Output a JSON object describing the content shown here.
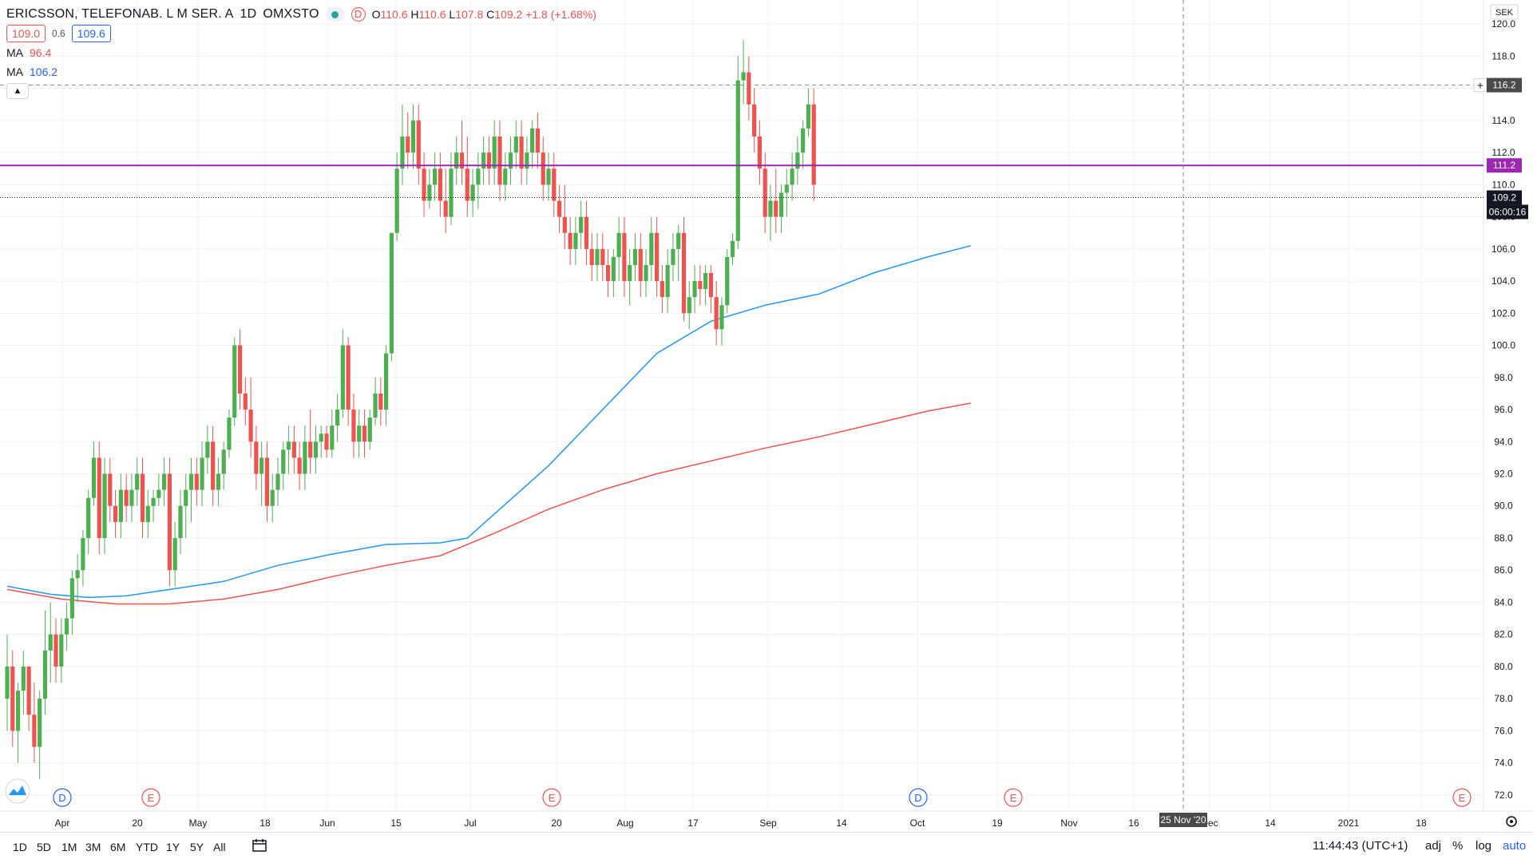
{
  "symbol_header": {
    "name": "ERICSSON, TELEFONAB. L M SER. A",
    "interval": "1D",
    "exchange": "OMXSTO",
    "badge": "D",
    "ohlc": {
      "o_label": "O",
      "o": "110.6",
      "h_label": "H",
      "h": "110.6",
      "l_label": "L",
      "l": "107.8",
      "c_label": "C",
      "c": "109.2",
      "change": "+1.8 (+1.68%)"
    }
  },
  "quote": {
    "bid": "109.0",
    "spread": "0.6",
    "ask": "109.6"
  },
  "indicators": [
    {
      "label": "MA",
      "value": "96.4",
      "color": "#ef5350"
    },
    {
      "label": "MA",
      "value": "106.2",
      "color": "#2196f3"
    }
  ],
  "colors": {
    "up": "#26a69a",
    "up_candle": "#4caf50",
    "down": "#ef5350",
    "ma_fast": "#2196f3",
    "ma_slow": "#ef5350",
    "level": "#9c27b0",
    "grid": "#eef1f6"
  },
  "chart_data": {
    "type": "candlestick",
    "currency": "SEK",
    "ylim": [
      71,
      121.5
    ],
    "y_ticks": [
      "72.0",
      "74.0",
      "76.0",
      "78.0",
      "80.0",
      "82.0",
      "84.0",
      "86.0",
      "88.0",
      "90.0",
      "92.0",
      "94.0",
      "96.0",
      "98.0",
      "100.0",
      "102.0",
      "104.0",
      "106.0",
      "108.0",
      "110.0",
      "112.0",
      "114.0",
      "116.0",
      "118.0",
      "120.0"
    ],
    "x_ticks": [
      "Apr",
      "20",
      "May",
      "18",
      "Jun",
      "15",
      "Jul",
      "20",
      "Aug",
      "17",
      "Sep",
      "14",
      "Oct",
      "19",
      "Nov",
      "16",
      "Dec",
      "14",
      "2021",
      "18"
    ],
    "hover_date": "25 Nov '20",
    "price_labels": [
      {
        "value": 116.2,
        "text": "116.2",
        "kind": "crosshair"
      },
      {
        "value": 111.2,
        "text": "111.2",
        "kind": "level"
      },
      {
        "value": 109.2,
        "text": "109.2",
        "kind": "last"
      }
    ],
    "countdown": "06:00:16",
    "horizontal_level": 111.2,
    "events": [
      {
        "x_index": 2,
        "label": "D",
        "type": "dividend"
      },
      {
        "x_index": 15,
        "label": "E",
        "type": "earnings"
      },
      {
        "x_index": 85,
        "label": "E",
        "type": "earnings"
      },
      {
        "x_index": 141,
        "label": "D",
        "type": "dividend"
      },
      {
        "x_index": 158,
        "label": "E",
        "type": "earnings"
      },
      {
        "x_index": 228,
        "label": "E",
        "type": "earnings"
      }
    ],
    "candles": [
      [
        78,
        82,
        76,
        80
      ],
      [
        80,
        81,
        75,
        76
      ],
      [
        76,
        79,
        74,
        78.5
      ],
      [
        78.5,
        81,
        77,
        80
      ],
      [
        80,
        80,
        76,
        77
      ],
      [
        77,
        79,
        74,
        75
      ],
      [
        75,
        78.5,
        73,
        78
      ],
      [
        78,
        83.5,
        77,
        81
      ],
      [
        81,
        84,
        79,
        82
      ],
      [
        82,
        83,
        79,
        80
      ],
      [
        80,
        83,
        79,
        82
      ],
      [
        82,
        84,
        81,
        83
      ],
      [
        83,
        86,
        82,
        85.5
      ],
      [
        85.5,
        87,
        84,
        86
      ],
      [
        86,
        88.5,
        85,
        88
      ],
      [
        88,
        91,
        87,
        90.5
      ],
      [
        90.5,
        94,
        90,
        93
      ],
      [
        93,
        94,
        87,
        88
      ],
      [
        88,
        93,
        87,
        92
      ],
      [
        92,
        93,
        89,
        90
      ],
      [
        90,
        91,
        88,
        89
      ],
      [
        89,
        92,
        88,
        91
      ],
      [
        91,
        92,
        89,
        90
      ],
      [
        90,
        92,
        89,
        91
      ],
      [
        91,
        93,
        90,
        92
      ],
      [
        92,
        93,
        88,
        89
      ],
      [
        89,
        91,
        88,
        90
      ],
      [
        90,
        91,
        89,
        90.5
      ],
      [
        90.5,
        92,
        90,
        91
      ],
      [
        91,
        93,
        90,
        92
      ],
      [
        92,
        93,
        85,
        86
      ],
      [
        86,
        89,
        85,
        88
      ],
      [
        88,
        91,
        87,
        90
      ],
      [
        90,
        92,
        88,
        91
      ],
      [
        91,
        93,
        89,
        92
      ],
      [
        92,
        93,
        90,
        91
      ],
      [
        91,
        94,
        90,
        93
      ],
      [
        93,
        95,
        92,
        94
      ],
      [
        94,
        95,
        90,
        91
      ],
      [
        91,
        93,
        90,
        92
      ],
      [
        92,
        94,
        91,
        93.5
      ],
      [
        93.5,
        96,
        93,
        95.5
      ],
      [
        95.5,
        100.5,
        95,
        100
      ],
      [
        100,
        101,
        96,
        97
      ],
      [
        97,
        98,
        95,
        96
      ],
      [
        96,
        98,
        93,
        94
      ],
      [
        94,
        95,
        91,
        92
      ],
      [
        92,
        94,
        90,
        93
      ],
      [
        93,
        94,
        89,
        90
      ],
      [
        90,
        92,
        89,
        91
      ],
      [
        91,
        93,
        90,
        92
      ],
      [
        92,
        94,
        91,
        93.5
      ],
      [
        93.5,
        95,
        92,
        94
      ],
      [
        94,
        95,
        92,
        93
      ],
      [
        93,
        94,
        91,
        92
      ],
      [
        92,
        95,
        91,
        94
      ],
      [
        94,
        96,
        92,
        93
      ],
      [
        93,
        95,
        92,
        94
      ],
      [
        94,
        95,
        93,
        94.5
      ],
      [
        94.5,
        95,
        93,
        93.5
      ],
      [
        93.5,
        96,
        93,
        95
      ],
      [
        95,
        97,
        94,
        96
      ],
      [
        96,
        101,
        95.5,
        100
      ],
      [
        100,
        100.5,
        95,
        96
      ],
      [
        96,
        97,
        93,
        94
      ],
      [
        94,
        96,
        93,
        95
      ],
      [
        95,
        96,
        93,
        94
      ],
      [
        94,
        96,
        93.5,
        95.5
      ],
      [
        95.5,
        98,
        95,
        97
      ],
      [
        97,
        98,
        95,
        96
      ],
      [
        96,
        100,
        95,
        99.5
      ],
      [
        99.5,
        107,
        99,
        107
      ],
      [
        107,
        112,
        106.5,
        111
      ],
      [
        111,
        115,
        110,
        113
      ],
      [
        113,
        114.5,
        111,
        112
      ],
      [
        112,
        115,
        111,
        114
      ],
      [
        114,
        115,
        110,
        111
      ],
      [
        111,
        112,
        108,
        109
      ],
      [
        109,
        111,
        108.5,
        110
      ],
      [
        110,
        112,
        109,
        111
      ],
      [
        111,
        112,
        108,
        109
      ],
      [
        109,
        111,
        107,
        108
      ],
      [
        108,
        112,
        107.5,
        111
      ],
      [
        111,
        113,
        110,
        112
      ],
      [
        112,
        114,
        110,
        111
      ],
      [
        111,
        113,
        108,
        109
      ],
      [
        109,
        111,
        108,
        110
      ],
      [
        110,
        112,
        108.5,
        111
      ],
      [
        111,
        113,
        110,
        112
      ],
      [
        112,
        113,
        110,
        111
      ],
      [
        111,
        114,
        110,
        113
      ],
      [
        113,
        114,
        109,
        110
      ],
      [
        110,
        112,
        109,
        111
      ],
      [
        111,
        113,
        110,
        112
      ],
      [
        112,
        114,
        111,
        113
      ],
      [
        113,
        114,
        110,
        111
      ],
      [
        111,
        113,
        110,
        112
      ],
      [
        112,
        114,
        111,
        113.5
      ],
      [
        113.5,
        114.5,
        111,
        112
      ],
      [
        112,
        113,
        109,
        110
      ],
      [
        110,
        112,
        109,
        111
      ],
      [
        111,
        112,
        108,
        109
      ],
      [
        109,
        110,
        107,
        108
      ],
      [
        108,
        110,
        106,
        107
      ],
      [
        107,
        108,
        105,
        106
      ],
      [
        106,
        108,
        105,
        107
      ],
      [
        107,
        109,
        106,
        108
      ],
      [
        108,
        109,
        105,
        106
      ],
      [
        106,
        107,
        104,
        105
      ],
      [
        105,
        107,
        104,
        106
      ],
      [
        106,
        107,
        104,
        105
      ],
      [
        105,
        106,
        103,
        104
      ],
      [
        104,
        106,
        103,
        105.5
      ],
      [
        105.5,
        108,
        104,
        107
      ],
      [
        107,
        108,
        103,
        104
      ],
      [
        104,
        106,
        102.5,
        105
      ],
      [
        105,
        107,
        104,
        106
      ],
      [
        106,
        107,
        103,
        104
      ],
      [
        104,
        106,
        103,
        105
      ],
      [
        105,
        108,
        104,
        107
      ],
      [
        107,
        108,
        103,
        104
      ],
      [
        104,
        105,
        102,
        103
      ],
      [
        103,
        106,
        102,
        105
      ],
      [
        105,
        107,
        104,
        106
      ],
      [
        106,
        107.5,
        104,
        107
      ],
      [
        107,
        108,
        101.5,
        102
      ],
      [
        102,
        104,
        101,
        103
      ],
      [
        103,
        105,
        102,
        104
      ],
      [
        104,
        105,
        102.5,
        103.5
      ],
      [
        103.5,
        105,
        102.5,
        104.5
      ],
      [
        104.5,
        105,
        102,
        103
      ],
      [
        103,
        104,
        100,
        101
      ],
      [
        101,
        103,
        100,
        102.5
      ],
      [
        102.5,
        106,
        102,
        105.5
      ],
      [
        105.5,
        107,
        105,
        106.5
      ],
      [
        106.5,
        118,
        106,
        116.5
      ],
      [
        116.5,
        119,
        115,
        117
      ],
      [
        117,
        118,
        114,
        115
      ],
      [
        115,
        116,
        112,
        113
      ],
      [
        113,
        114,
        110,
        111
      ],
      [
        111,
        112,
        107,
        108
      ],
      [
        108,
        110,
        106.5,
        109
      ],
      [
        109,
        111,
        107,
        108
      ],
      [
        108,
        110,
        107,
        109.5
      ],
      [
        109.5,
        111,
        108,
        110
      ],
      [
        110,
        112,
        109,
        111
      ],
      [
        111,
        113,
        110,
        112
      ],
      [
        112,
        114,
        111,
        113.5
      ],
      [
        113.5,
        116,
        113,
        115
      ],
      [
        115,
        116,
        109,
        110
      ]
    ],
    "ma_fast": [
      [
        0,
        85.0
      ],
      [
        8,
        84.5
      ],
      [
        15,
        84.3
      ],
      [
        22,
        84.4
      ],
      [
        30,
        84.8
      ],
      [
        40,
        85.3
      ],
      [
        50,
        86.3
      ],
      [
        60,
        87.0
      ],
      [
        70,
        87.6
      ],
      [
        80,
        87.7
      ],
      [
        85,
        88.0
      ],
      [
        90,
        89.5
      ],
      [
        100,
        92.5
      ],
      [
        110,
        96.0
      ],
      [
        120,
        99.5
      ],
      [
        130,
        101.5
      ],
      [
        140,
        102.5
      ],
      [
        150,
        103.2
      ],
      [
        160,
        104.5
      ],
      [
        170,
        105.5
      ],
      [
        178,
        106.2
      ]
    ],
    "ma_slow": [
      [
        0,
        84.8
      ],
      [
        10,
        84.2
      ],
      [
        20,
        83.9
      ],
      [
        30,
        83.9
      ],
      [
        40,
        84.2
      ],
      [
        50,
        84.8
      ],
      [
        60,
        85.6
      ],
      [
        70,
        86.3
      ],
      [
        80,
        86.9
      ],
      [
        90,
        88.3
      ],
      [
        100,
        89.8
      ],
      [
        110,
        91.0
      ],
      [
        120,
        92.0
      ],
      [
        130,
        92.8
      ],
      [
        140,
        93.6
      ],
      [
        150,
        94.3
      ],
      [
        160,
        95.1
      ],
      [
        170,
        95.9
      ],
      [
        178,
        96.4
      ]
    ]
  },
  "toolbar": {
    "ranges": [
      "1D",
      "5D",
      "1M",
      "3M",
      "6M",
      "YTD",
      "1Y",
      "5Y",
      "All"
    ],
    "clock": "11:44:43 (UTC+1)",
    "adj": "adj",
    "pct": "%",
    "log": "log",
    "auto": "auto"
  }
}
